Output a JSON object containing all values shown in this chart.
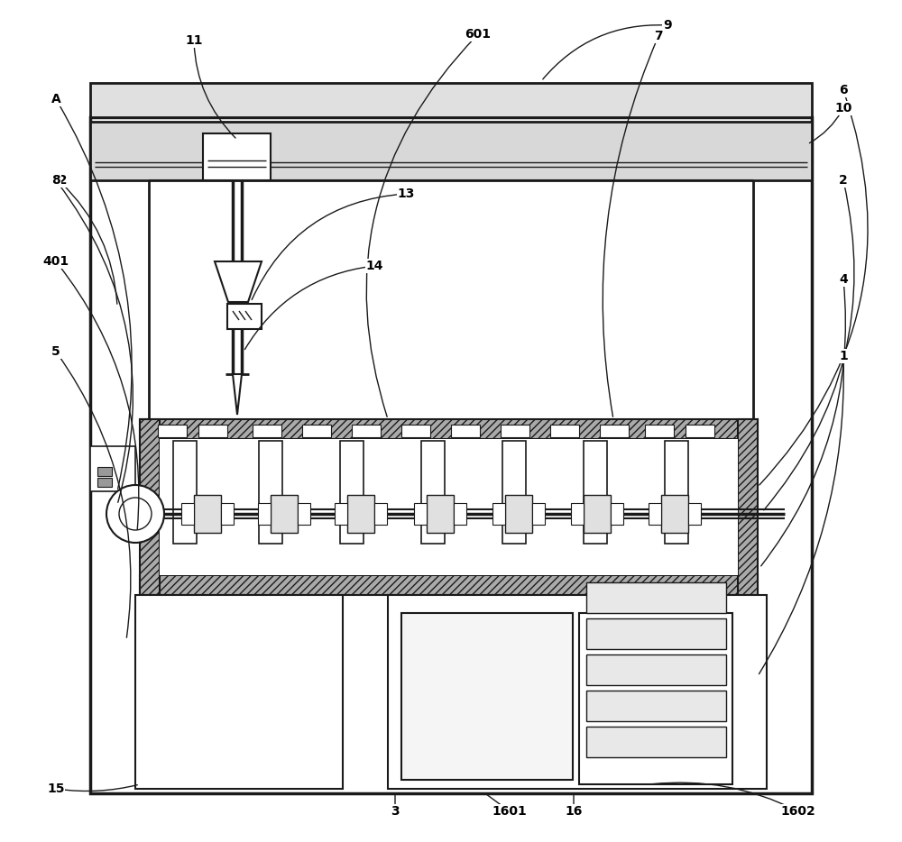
{
  "bg_color": "#ffffff",
  "line_color": "#1a1a1a",
  "figsize": [
    10.0,
    9.34
  ],
  "dpi": 100
}
